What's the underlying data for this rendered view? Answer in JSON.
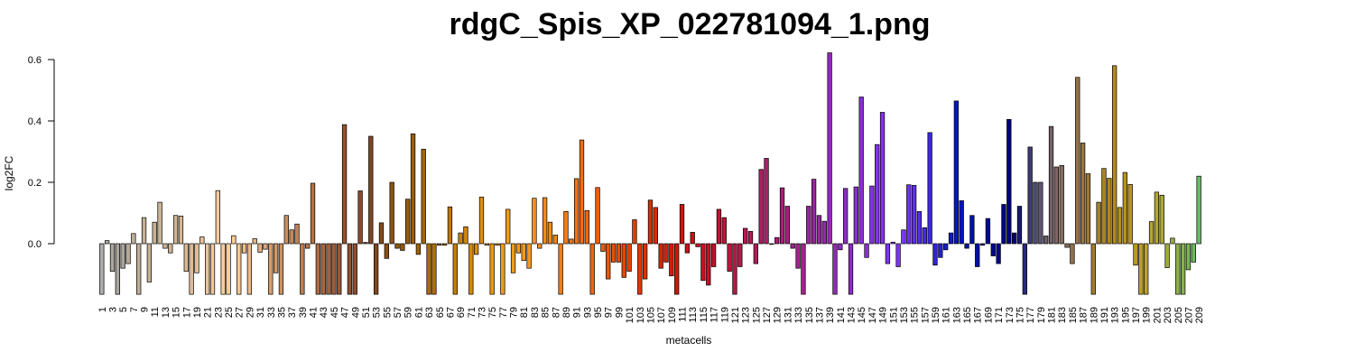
{
  "chart_data": {
    "type": "bar",
    "title": "rdgC_Spis_XP_022781094_1.png",
    "xlabel": "metacells",
    "ylabel": "log2FC",
    "ylim": [
      -0.165,
      0.62
    ],
    "yticks": [
      0.0,
      0.2,
      0.4,
      0.6
    ],
    "ytick_labels": [
      "0.0",
      "0.2",
      "0.4",
      "0.6"
    ],
    "x_tick_every": 2,
    "grid": false,
    "legend": "none",
    "categories": [
      "1",
      "2",
      "3",
      "4",
      "5",
      "6",
      "7",
      "8",
      "9",
      "10",
      "11",
      "12",
      "13",
      "14",
      "15",
      "16",
      "17",
      "18",
      "19",
      "20",
      "21",
      "22",
      "23",
      "24",
      "25",
      "26",
      "27",
      "28",
      "29",
      "30",
      "31",
      "32",
      "33",
      "34",
      "35",
      "36",
      "37",
      "38",
      "39",
      "40",
      "41",
      "42",
      "43",
      "44",
      "45",
      "46",
      "47",
      "48",
      "49",
      "50",
      "51",
      "52",
      "53",
      "54",
      "55",
      "56",
      "57",
      "58",
      "59",
      "60",
      "61",
      "62",
      "63",
      "64",
      "65",
      "66",
      "67",
      "68",
      "69",
      "70",
      "71",
      "72",
      "73",
      "74",
      "75",
      "76",
      "77",
      "78",
      "79",
      "80",
      "81",
      "82",
      "83",
      "84",
      "85",
      "86",
      "87",
      "88",
      "89",
      "90",
      "91",
      "92",
      "93",
      "94",
      "95",
      "96",
      "97",
      "98",
      "99",
      "100",
      "101",
      "102",
      "103",
      "104",
      "105",
      "106",
      "107",
      "108",
      "109",
      "110",
      "111",
      "112",
      "113",
      "114",
      "115",
      "116",
      "117",
      "118",
      "119",
      "120",
      "121",
      "122",
      "123",
      "124",
      "125",
      "126",
      "127",
      "128",
      "129",
      "130",
      "131",
      "132",
      "133",
      "134",
      "135",
      "136",
      "137",
      "138",
      "139",
      "140",
      "141",
      "142",
      "143",
      "144",
      "145",
      "146",
      "147",
      "148",
      "149",
      "150",
      "151",
      "152",
      "153",
      "154",
      "155",
      "156",
      "157",
      "158",
      "159",
      "160",
      "161",
      "162",
      "163",
      "164",
      "165",
      "166",
      "167",
      "168",
      "169",
      "170",
      "171",
      "172",
      "173",
      "174",
      "175",
      "176",
      "177",
      "178",
      "179",
      "180",
      "181",
      "182",
      "183",
      "184",
      "185",
      "186",
      "187",
      "188",
      "189",
      "190",
      "191",
      "192",
      "193",
      "194",
      "195",
      "196",
      "197",
      "198",
      "199",
      "200",
      "201",
      "202",
      "203",
      "204",
      "205",
      "206",
      "207",
      "208",
      "209"
    ],
    "values": [
      -0.165,
      0.01,
      -0.09,
      -0.165,
      -0.08,
      -0.065,
      0.033,
      -0.165,
      0.085,
      -0.125,
      0.07,
      0.135,
      -0.015,
      -0.03,
      0.092,
      0.09,
      -0.09,
      -0.165,
      -0.095,
      0.022,
      -0.165,
      -0.165,
      0.173,
      -0.165,
      -0.165,
      0.026,
      -0.165,
      -0.03,
      -0.165,
      0.016,
      -0.028,
      -0.018,
      -0.165,
      -0.095,
      -0.165,
      0.092,
      0.045,
      0.064,
      -0.165,
      -0.015,
      0.197,
      -0.165,
      -0.165,
      -0.165,
      -0.165,
      -0.165,
      0.388,
      -0.165,
      -0.165,
      0.172,
      0.004,
      0.35,
      -0.165,
      0.068,
      -0.048,
      0.2,
      -0.015,
      -0.022,
      0.145,
      0.358,
      -0.035,
      0.308,
      -0.165,
      -0.165,
      -0.005,
      -0.005,
      0.12,
      -0.165,
      0.035,
      0.055,
      -0.165,
      -0.035,
      0.152,
      -0.005,
      -0.165,
      -0.005,
      -0.165,
      0.112,
      -0.095,
      -0.03,
      -0.055,
      -0.08,
      0.148,
      -0.015,
      0.15,
      0.07,
      0.028,
      -0.165,
      0.105,
      0.015,
      0.212,
      0.338,
      0.108,
      -0.165,
      0.183,
      -0.025,
      -0.115,
      -0.06,
      -0.06,
      -0.11,
      -0.09,
      0.078,
      -0.165,
      -0.115,
      0.142,
      0.118,
      -0.08,
      -0.06,
      -0.105,
      -0.165,
      0.128,
      -0.03,
      0.037,
      -0.01,
      -0.12,
      -0.135,
      -0.075,
      0.112,
      0.085,
      -0.09,
      -0.165,
      -0.075,
      0.05,
      0.04,
      -0.065,
      0.242,
      0.278,
      0.0,
      0.02,
      0.182,
      0.122,
      -0.015,
      -0.08,
      -0.165,
      0.122,
      0.21,
      0.092,
      0.073,
      0.622,
      -0.165,
      -0.02,
      0.18,
      -0.165,
      0.185,
      0.478,
      -0.045,
      0.188,
      0.323,
      0.428,
      -0.065,
      0.005,
      -0.075,
      0.045,
      0.192,
      0.19,
      0.105,
      0.052,
      0.362,
      -0.07,
      -0.045,
      -0.02,
      0.035,
      0.465,
      0.14,
      -0.015,
      0.092,
      -0.075,
      -0.005,
      0.082,
      -0.04,
      -0.065,
      0.128,
      0.405,
      0.035,
      0.122,
      -0.165,
      0.315,
      0.2,
      0.2,
      0.025,
      0.382,
      0.25,
      0.255,
      -0.012,
      -0.065,
      0.542,
      0.328,
      0.228,
      -0.165,
      0.135,
      0.245,
      0.213,
      0.58,
      0.118,
      0.232,
      0.193,
      -0.07,
      -0.165,
      -0.165,
      0.072,
      0.168,
      0.158,
      -0.078,
      0.018,
      -0.165,
      -0.165,
      -0.085,
      -0.06,
      0.22
    ],
    "colors": [
      "#adadad",
      "#ababa5",
      "#aaa79f",
      "#aaa59e",
      "#a9a399",
      "#b6aa98",
      "#bfae98",
      "#c0ae97",
      "#c3b096",
      "#c6b194",
      "#c8b395",
      "#cbb493",
      "#cdb593",
      "#ceb593",
      "#d0b592",
      "#d4b794",
      "#d9b993",
      "#dcbb96",
      "#e2bf98",
      "#e5c19a",
      "#e9c49c",
      "#eec7a0",
      "#f2cb9f",
      "#f6cd9e",
      "#fbd09b",
      "#f9cb95",
      "#f5c592",
      "#f0c08c",
      "#eab988",
      "#e4b281",
      "#dfac7c",
      "#daa677",
      "#d59f70",
      "#d09a6b",
      "#cb9464",
      "#c88f5f",
      "#c38859",
      "#c08355",
      "#bc7d4f",
      "#b97849",
      "#b47244",
      "#af6c41",
      "#aa663d",
      "#a56039",
      "#a05b35",
      "#9b5632",
      "#96522e",
      "#925030",
      "#8e4d2d",
      "#8a4a2b",
      "#864728",
      "#834322",
      "#84481c",
      "#874b18",
      "#8a4f16",
      "#8d5212",
      "#91560f",
      "#94590e",
      "#975c0c",
      "#9a5f0a",
      "#9f6209",
      "#a46607",
      "#a96a06",
      "#b06e06",
      "#b57205",
      "#ba7504",
      "#c07806",
      "#c57c07",
      "#ca8008",
      "#cf840b",
      "#d4880c",
      "#d98c0e",
      "#de900f",
      "#e39410",
      "#e79810",
      "#eb9a12",
      "#ee9b14",
      "#f09c16",
      "#f29c18",
      "#f49c1b",
      "#f59a1c",
      "#f6961c",
      "#f6921b",
      "#f68e1a",
      "#f78a18",
      "#f78617",
      "#f78216",
      "#f77e14",
      "#f77a13",
      "#f67612",
      "#f57210",
      "#f36e0e",
      "#f1690c",
      "#ef650b",
      "#ed6009",
      "#eb5b08",
      "#e95706",
      "#e75205",
      "#e54d04",
      "#e34803",
      "#e14303",
      "#df3e02",
      "#dd3902",
      "#db3402",
      "#d92f02",
      "#d72a02",
      "#d52503",
      "#d32005",
      "#d11b07",
      "#cf170a",
      "#cd140e",
      "#cb1212",
      "#c91116",
      "#c7111b",
      "#c51120",
      "#c31226",
      "#c1132c",
      "#bf1432",
      "#bd1538",
      "#bb163e",
      "#b91744",
      "#b7184a",
      "#b51950",
      "#b31a56",
      "#b11b5c",
      "#af1c62",
      "#ad1d68",
      "#ab1e6e",
      "#a91f74",
      "#a7207a",
      "#a52180",
      "#a32286",
      "#a1238c",
      "#9f2492",
      "#9d2598",
      "#9b269e",
      "#9927a4",
      "#9728aa",
      "#9529b0",
      "#932ab6",
      "#912bbc",
      "#8f2cc2",
      "#8d2dc8",
      "#8b2ece",
      "#892fd4",
      "#8730da",
      "#8531e0",
      "#8332e6",
      "#8133ec",
      "#7f34f2",
      "#7d35f8",
      "#7b36fe",
      "#7937f8",
      "#6d32f2",
      "#6130ec",
      "#552de6",
      "#492ae0",
      "#3d27da",
      "#3124d4",
      "#2521ce",
      "#191ec8",
      "#0d1bc2",
      "#0118bc",
      "#0015b6",
      "#0013b0",
      "#0011aa",
      "#000fa4",
      "#000d9e",
      "#000b98",
      "#000992",
      "#00078c",
      "#000586",
      "#000380",
      "#00017a",
      "#18197a",
      "#2a2a78",
      "#3c3b76",
      "#4e4c74",
      "#5d5570",
      "#6a5c6c",
      "#756168",
      "#7e6664",
      "#866a5e",
      "#8c6d58",
      "#917050",
      "#967348",
      "#9a7640",
      "#9e7938",
      "#a27c30",
      "#a68028",
      "#aa8424",
      "#ae8820",
      "#b28c1e",
      "#b6901e",
      "#b8931e",
      "#ba9620",
      "#bc9a24",
      "#bc9e2a",
      "#baa230",
      "#b6a434",
      "#b0a638",
      "#a8a83c",
      "#a0aa40",
      "#98ac46",
      "#8eaf4c",
      "#84b252",
      "#7ab558",
      "#70b85e",
      "#66bb64",
      "#5cbe6a",
      "#52c170",
      "#48c476",
      "#3ec87c",
      "#34cc84",
      "#2ad08c",
      "#20d494",
      "#16d89c",
      "#10dcaa",
      "#0ce2b8",
      "#08e8c6",
      "#04eed4",
      "#02f4e2",
      "#01f8f0",
      "#00fcfc"
    ]
  }
}
